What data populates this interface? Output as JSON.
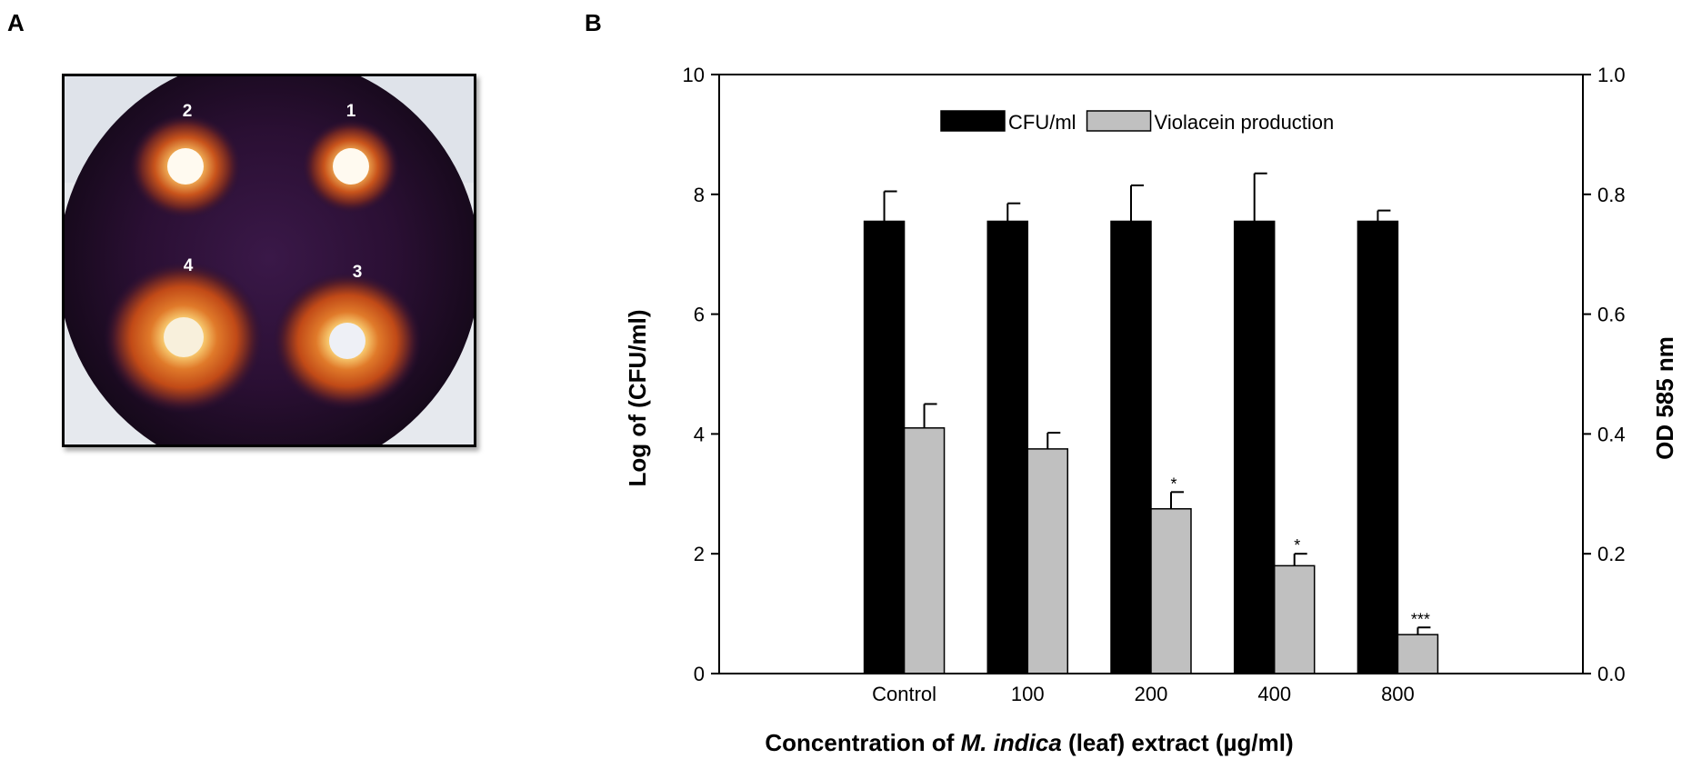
{
  "panels": {
    "a_label": "A",
    "b_label": "B"
  },
  "plate": {
    "well_labels": [
      "2",
      "1",
      "4",
      "3"
    ]
  },
  "chart_data": {
    "type": "bar",
    "categories": [
      "Control",
      "100",
      "200",
      "400",
      "800"
    ],
    "xlabel_parts": [
      {
        "text": "Concentration of ",
        "italic": false
      },
      {
        "text": "M. indica",
        "italic": true
      },
      {
        "text": " (leaf) extract (µg/ml)",
        "italic": false
      }
    ],
    "ylabel_left": "Log of (CFU/ml)",
    "ylabel_right": "OD 585 nm",
    "ylim_left": [
      0,
      10
    ],
    "ylim_right": [
      0.0,
      1.0
    ],
    "yticks_left": [
      "0",
      "2",
      "4",
      "6",
      "8",
      "10"
    ],
    "yticks_right": [
      "0.0",
      "0.2",
      "0.4",
      "0.6",
      "0.8",
      "1.0"
    ],
    "legend_position": "top-center",
    "series": [
      {
        "name": "CFU/ml",
        "axis": "left",
        "color": "#000000",
        "values": [
          7.55,
          7.55,
          7.55,
          7.55,
          7.55
        ],
        "errors": [
          0.5,
          0.3,
          0.6,
          0.8,
          0.18
        ],
        "significance": [
          "",
          "",
          "",
          "",
          ""
        ]
      },
      {
        "name": "Violacein production",
        "axis": "right",
        "color": "#c0c0c0",
        "values": [
          0.41,
          0.375,
          0.275,
          0.18,
          0.065
        ],
        "errors": [
          0.04,
          0.027,
          0.028,
          0.02,
          0.012
        ],
        "significance": [
          "",
          "",
          "*",
          "*",
          "***"
        ]
      }
    ]
  }
}
